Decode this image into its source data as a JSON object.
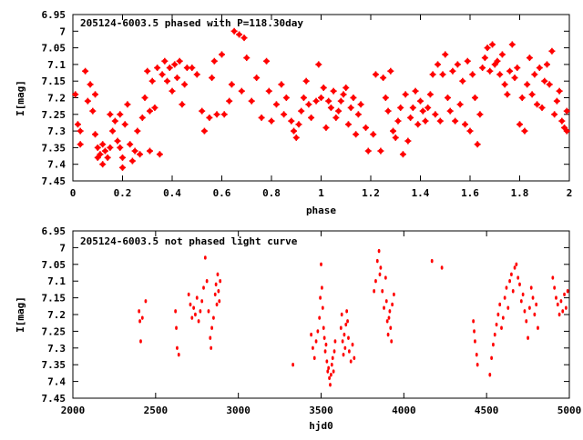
{
  "chart_data": [
    {
      "type": "scatter",
      "title": "205124-6003.5 phased with P=118.30day",
      "xlabel": "phase",
      "ylabel": "I[mag]",
      "xlim": [
        0,
        2
      ],
      "ylim": [
        6.95,
        7.45
      ],
      "y_inverted": true,
      "x_ticks": [
        0,
        0.2,
        0.4,
        0.6,
        0.8,
        1,
        1.2,
        1.4,
        1.6,
        1.8,
        2
      ],
      "x_tick_labels": [
        "0",
        "0.2",
        "0.4",
        "0.6",
        "0.8",
        "1",
        "1.2",
        "1.4",
        "1.6",
        "1.8",
        "2"
      ],
      "y_ticks": [
        6.95,
        7,
        7.05,
        7.1,
        7.15,
        7.2,
        7.25,
        7.3,
        7.35,
        7.4,
        7.45
      ],
      "y_tick_labels": [
        "6.95",
        "7",
        "7.05",
        "7.1",
        "7.15",
        "7.2",
        "7.25",
        "7.3",
        "7.35",
        "7.4",
        "7.45"
      ],
      "grid": false,
      "marker_color": "#ff0000",
      "points": [
        [
          0.01,
          7.19
        ],
        [
          0.02,
          7.28
        ],
        [
          0.03,
          7.34
        ],
        [
          0.03,
          7.3
        ],
        [
          0.05,
          7.12
        ],
        [
          0.06,
          7.21
        ],
        [
          0.07,
          7.16
        ],
        [
          0.08,
          7.24
        ],
        [
          0.09,
          7.31
        ],
        [
          0.09,
          7.19
        ],
        [
          0.1,
          7.38
        ],
        [
          0.1,
          7.35
        ],
        [
          0.11,
          7.37
        ],
        [
          0.12,
          7.4
        ],
        [
          0.12,
          7.34
        ],
        [
          0.13,
          7.36
        ],
        [
          0.14,
          7.38
        ],
        [
          0.15,
          7.35
        ],
        [
          0.15,
          7.25
        ],
        [
          0.16,
          7.3
        ],
        [
          0.17,
          7.27
        ],
        [
          0.18,
          7.33
        ],
        [
          0.19,
          7.35
        ],
        [
          0.19,
          7.25
        ],
        [
          0.2,
          7.38
        ],
        [
          0.2,
          7.41
        ],
        [
          0.21,
          7.28
        ],
        [
          0.22,
          7.22
        ],
        [
          0.23,
          7.34
        ],
        [
          0.24,
          7.39
        ],
        [
          0.25,
          7.36
        ],
        [
          0.26,
          7.3
        ],
        [
          0.27,
          7.37
        ],
        [
          0.28,
          7.26
        ],
        [
          0.29,
          7.2
        ],
        [
          0.3,
          7.12
        ],
        [
          0.31,
          7.36
        ],
        [
          0.31,
          7.24
        ],
        [
          0.32,
          7.15
        ],
        [
          0.33,
          7.23
        ],
        [
          0.34,
          7.11
        ],
        [
          0.35,
          7.37
        ],
        [
          0.36,
          7.13
        ],
        [
          0.37,
          7.09
        ],
        [
          0.38,
          7.15
        ],
        [
          0.39,
          7.11
        ],
        [
          0.4,
          7.18
        ],
        [
          0.41,
          7.1
        ],
        [
          0.42,
          7.14
        ],
        [
          0.43,
          7.09
        ],
        [
          0.44,
          7.22
        ],
        [
          0.45,
          7.16
        ],
        [
          0.46,
          7.11
        ],
        [
          0.48,
          7.11
        ],
        [
          0.5,
          7.13
        ],
        [
          0.52,
          7.24
        ],
        [
          0.53,
          7.3
        ],
        [
          0.55,
          7.26
        ],
        [
          0.56,
          7.14
        ],
        [
          0.57,
          7.09
        ],
        [
          0.58,
          7.25
        ],
        [
          0.6,
          7.07
        ],
        [
          0.61,
          7.25
        ],
        [
          0.63,
          7.21
        ],
        [
          0.64,
          7.16
        ],
        [
          0.65,
          7.0
        ],
        [
          0.67,
          7.01
        ],
        [
          0.68,
          7.18
        ],
        [
          0.69,
          7.02
        ],
        [
          0.7,
          7.08
        ],
        [
          0.72,
          7.21
        ],
        [
          0.74,
          7.14
        ],
        [
          0.76,
          7.26
        ],
        [
          0.78,
          7.09
        ],
        [
          0.79,
          7.18
        ],
        [
          0.8,
          7.27
        ],
        [
          0.82,
          7.22
        ],
        [
          0.84,
          7.16
        ],
        [
          0.85,
          7.25
        ],
        [
          0.86,
          7.2
        ],
        [
          0.88,
          7.27
        ],
        [
          0.89,
          7.3
        ],
        [
          0.9,
          7.32
        ],
        [
          0.91,
          7.28
        ],
        [
          0.92,
          7.24
        ],
        [
          0.93,
          7.2
        ],
        [
          0.94,
          7.15
        ],
        [
          0.95,
          7.22
        ],
        [
          0.96,
          7.26
        ],
        [
          0.98,
          7.21
        ],
        [
          0.99,
          7.1
        ],
        [
          1.0,
          7.2
        ],
        [
          1.01,
          7.17
        ],
        [
          1.02,
          7.29
        ],
        [
          1.03,
          7.21
        ],
        [
          1.04,
          7.23
        ],
        [
          1.05,
          7.18
        ],
        [
          1.06,
          7.26
        ],
        [
          1.07,
          7.24
        ],
        [
          1.08,
          7.21
        ],
        [
          1.09,
          7.19
        ],
        [
          1.1,
          7.17
        ],
        [
          1.11,
          7.28
        ],
        [
          1.12,
          7.23
        ],
        [
          1.13,
          7.2
        ],
        [
          1.14,
          7.31
        ],
        [
          1.15,
          7.25
        ],
        [
          1.16,
          7.22
        ],
        [
          1.18,
          7.29
        ],
        [
          1.19,
          7.36
        ],
        [
          1.21,
          7.31
        ],
        [
          1.22,
          7.13
        ],
        [
          1.24,
          7.36
        ],
        [
          1.25,
          7.14
        ],
        [
          1.26,
          7.2
        ],
        [
          1.27,
          7.24
        ],
        [
          1.28,
          7.12
        ],
        [
          1.29,
          7.3
        ],
        [
          1.3,
          7.32
        ],
        [
          1.31,
          7.27
        ],
        [
          1.32,
          7.23
        ],
        [
          1.33,
          7.37
        ],
        [
          1.34,
          7.19
        ],
        [
          1.35,
          7.33
        ],
        [
          1.36,
          7.26
        ],
        [
          1.37,
          7.23
        ],
        [
          1.38,
          7.18
        ],
        [
          1.39,
          7.28
        ],
        [
          1.4,
          7.21
        ],
        [
          1.41,
          7.24
        ],
        [
          1.42,
          7.27
        ],
        [
          1.43,
          7.23
        ],
        [
          1.44,
          7.19
        ],
        [
          1.45,
          7.13
        ],
        [
          1.46,
          7.25
        ],
        [
          1.47,
          7.1
        ],
        [
          1.48,
          7.27
        ],
        [
          1.49,
          7.13
        ],
        [
          1.5,
          7.07
        ],
        [
          1.51,
          7.2
        ],
        [
          1.52,
          7.24
        ],
        [
          1.53,
          7.12
        ],
        [
          1.54,
          7.27
        ],
        [
          1.55,
          7.1
        ],
        [
          1.56,
          7.22
        ],
        [
          1.57,
          7.15
        ],
        [
          1.58,
          7.28
        ],
        [
          1.59,
          7.09
        ],
        [
          1.6,
          7.3
        ],
        [
          1.61,
          7.13
        ],
        [
          1.62,
          7.2
        ],
        [
          1.63,
          7.34
        ],
        [
          1.64,
          7.25
        ],
        [
          1.65,
          7.11
        ],
        [
          1.66,
          7.08
        ],
        [
          1.67,
          7.05
        ],
        [
          1.68,
          7.12
        ],
        [
          1.69,
          7.04
        ],
        [
          1.7,
          7.1
        ],
        [
          1.71,
          7.09
        ],
        [
          1.72,
          7.13
        ],
        [
          1.73,
          7.07
        ],
        [
          1.74,
          7.16
        ],
        [
          1.75,
          7.19
        ],
        [
          1.76,
          7.12
        ],
        [
          1.77,
          7.04
        ],
        [
          1.78,
          7.14
        ],
        [
          1.79,
          7.11
        ],
        [
          1.8,
          7.28
        ],
        [
          1.81,
          7.2
        ],
        [
          1.82,
          7.3
        ],
        [
          1.83,
          7.16
        ],
        [
          1.84,
          7.08
        ],
        [
          1.85,
          7.19
        ],
        [
          1.86,
          7.13
        ],
        [
          1.87,
          7.22
        ],
        [
          1.88,
          7.11
        ],
        [
          1.89,
          7.23
        ],
        [
          1.9,
          7.15
        ],
        [
          1.91,
          7.1
        ],
        [
          1.92,
          7.16
        ],
        [
          1.93,
          7.06
        ],
        [
          1.94,
          7.25
        ],
        [
          1.95,
          7.21
        ],
        [
          1.96,
          7.18
        ],
        [
          1.97,
          7.27
        ],
        [
          1.98,
          7.29
        ],
        [
          1.99,
          7.3
        ],
        [
          1.99,
          7.24
        ]
      ]
    },
    {
      "type": "scatter",
      "title": "205124-6003.5 not phased light curve",
      "xlabel": "hjd0",
      "ylabel": "I[mag]",
      "xlim": [
        2000,
        5000
      ],
      "ylim": [
        6.95,
        7.45
      ],
      "y_inverted": true,
      "x_ticks": [
        2000,
        2500,
        3000,
        3500,
        4000,
        4500,
        5000
      ],
      "x_tick_labels": [
        "2000",
        "2500",
        "3000",
        "3500",
        "4000",
        "4500",
        "5000"
      ],
      "y_ticks": [
        6.95,
        7,
        7.05,
        7.1,
        7.15,
        7.2,
        7.25,
        7.3,
        7.35,
        7.4,
        7.45
      ],
      "y_tick_labels": [
        "6.95",
        "7",
        "7.05",
        "7.1",
        "7.15",
        "7.2",
        "7.25",
        "7.3",
        "7.35",
        "7.4",
        "7.45"
      ],
      "grid": false,
      "marker_color": "#ff0000",
      "points": [
        [
          2400,
          7.19
        ],
        [
          2405,
          7.22
        ],
        [
          2410,
          7.28
        ],
        [
          2420,
          7.21
        ],
        [
          2440,
          7.16
        ],
        [
          2620,
          7.19
        ],
        [
          2625,
          7.24
        ],
        [
          2630,
          7.3
        ],
        [
          2640,
          7.32
        ],
        [
          2700,
          7.14
        ],
        [
          2710,
          7.17
        ],
        [
          2720,
          7.21
        ],
        [
          2730,
          7.18
        ],
        [
          2740,
          7.2
        ],
        [
          2750,
          7.15
        ],
        [
          2760,
          7.22
        ],
        [
          2770,
          7.19
        ],
        [
          2780,
          7.16
        ],
        [
          2790,
          7.12
        ],
        [
          2800,
          7.03
        ],
        [
          2810,
          7.1
        ],
        [
          2820,
          7.19
        ],
        [
          2830,
          7.27
        ],
        [
          2835,
          7.3
        ],
        [
          2840,
          7.24
        ],
        [
          2850,
          7.21
        ],
        [
          2860,
          7.14
        ],
        [
          2865,
          7.11
        ],
        [
          2870,
          7.17
        ],
        [
          2875,
          7.08
        ],
        [
          2880,
          7.13
        ],
        [
          2885,
          7.16
        ],
        [
          2890,
          7.1
        ],
        [
          3330,
          7.35
        ],
        [
          3440,
          7.26
        ],
        [
          3450,
          7.3
        ],
        [
          3460,
          7.33
        ],
        [
          3470,
          7.28
        ],
        [
          3480,
          7.25
        ],
        [
          3490,
          7.21
        ],
        [
          3495,
          7.15
        ],
        [
          3500,
          7.05
        ],
        [
          3505,
          7.12
        ],
        [
          3510,
          7.18
        ],
        [
          3515,
          7.24
        ],
        [
          3520,
          7.27
        ],
        [
          3525,
          7.31
        ],
        [
          3530,
          7.29
        ],
        [
          3535,
          7.34
        ],
        [
          3540,
          7.37
        ],
        [
          3545,
          7.36
        ],
        [
          3550,
          7.39
        ],
        [
          3555,
          7.41
        ],
        [
          3560,
          7.38
        ],
        [
          3565,
          7.35
        ],
        [
          3570,
          7.33
        ],
        [
          3575,
          7.37
        ],
        [
          3580,
          7.31
        ],
        [
          3585,
          7.28
        ],
        [
          3620,
          7.24
        ],
        [
          3625,
          7.2
        ],
        [
          3630,
          7.28
        ],
        [
          3635,
          7.32
        ],
        [
          3640,
          7.26
        ],
        [
          3645,
          7.3
        ],
        [
          3650,
          7.23
        ],
        [
          3655,
          7.19
        ],
        [
          3660,
          7.22
        ],
        [
          3665,
          7.27
        ],
        [
          3670,
          7.31
        ],
        [
          3680,
          7.34
        ],
        [
          3690,
          7.29
        ],
        [
          3700,
          7.33
        ],
        [
          3820,
          7.13
        ],
        [
          3830,
          7.1
        ],
        [
          3840,
          7.04
        ],
        [
          3850,
          7.01
        ],
        [
          3855,
          7.08
        ],
        [
          3860,
          7.06
        ],
        [
          3870,
          7.13
        ],
        [
          3880,
          7.18
        ],
        [
          3890,
          7.09
        ],
        [
          3895,
          7.16
        ],
        [
          3900,
          7.22
        ],
        [
          3905,
          7.26
        ],
        [
          3910,
          7.21
        ],
        [
          3915,
          7.19
        ],
        [
          3920,
          7.24
        ],
        [
          3925,
          7.28
        ],
        [
          3930,
          7.17
        ],
        [
          3940,
          7.14
        ],
        [
          4170,
          7.04
        ],
        [
          4230,
          7.06
        ],
        [
          4420,
          7.22
        ],
        [
          4425,
          7.25
        ],
        [
          4430,
          7.28
        ],
        [
          4440,
          7.32
        ],
        [
          4445,
          7.35
        ],
        [
          4520,
          7.38
        ],
        [
          4530,
          7.33
        ],
        [
          4540,
          7.29
        ],
        [
          4550,
          7.26
        ],
        [
          4560,
          7.23
        ],
        [
          4570,
          7.2
        ],
        [
          4580,
          7.17
        ],
        [
          4590,
          7.24
        ],
        [
          4600,
          7.21
        ],
        [
          4610,
          7.15
        ],
        [
          4620,
          7.12
        ],
        [
          4630,
          7.18
        ],
        [
          4640,
          7.1
        ],
        [
          4650,
          7.08
        ],
        [
          4660,
          7.13
        ],
        [
          4670,
          7.06
        ],
        [
          4680,
          7.05
        ],
        [
          4690,
          7.09
        ],
        [
          4700,
          7.11
        ],
        [
          4710,
          7.16
        ],
        [
          4720,
          7.14
        ],
        [
          4730,
          7.19
        ],
        [
          4740,
          7.22
        ],
        [
          4750,
          7.27
        ],
        [
          4760,
          7.18
        ],
        [
          4770,
          7.12
        ],
        [
          4780,
          7.15
        ],
        [
          4790,
          7.2
        ],
        [
          4800,
          7.17
        ],
        [
          4810,
          7.24
        ],
        [
          4900,
          7.09
        ],
        [
          4910,
          7.12
        ],
        [
          4920,
          7.15
        ],
        [
          4930,
          7.17
        ],
        [
          4940,
          7.2
        ],
        [
          4950,
          7.16
        ],
        [
          4960,
          7.19
        ],
        [
          4970,
          7.14
        ],
        [
          4980,
          7.18
        ],
        [
          4990,
          7.13
        ]
      ]
    }
  ]
}
